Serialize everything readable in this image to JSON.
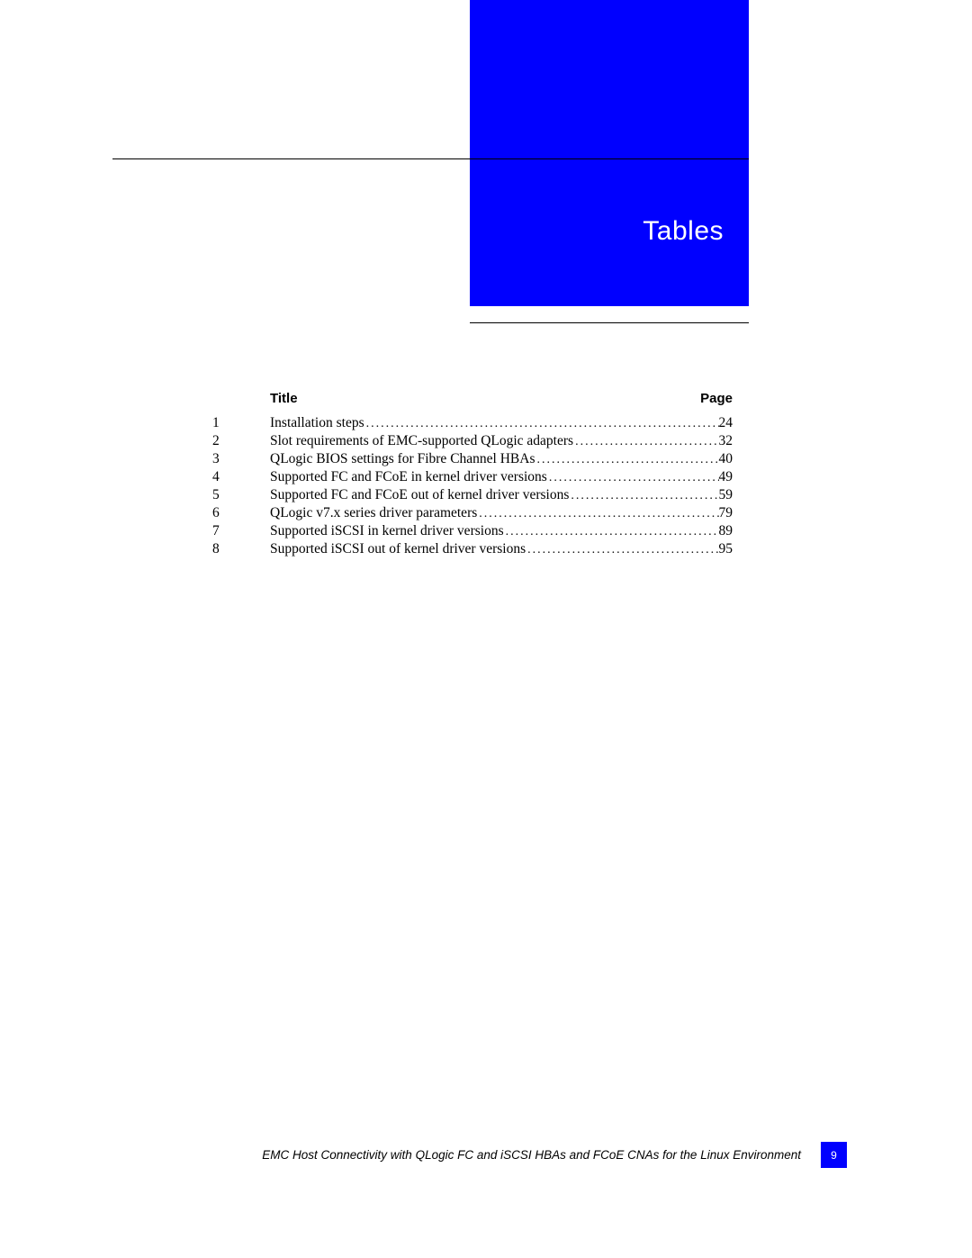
{
  "banner": {
    "title": "Tables",
    "bg_color": "#0000ff",
    "text_color": "#ffffff",
    "title_fontsize": 30
  },
  "headers": {
    "title_label": "Title",
    "page_label": "Page",
    "fontsize": 15,
    "font_weight": "bold",
    "color": "#000000"
  },
  "entries": [
    {
      "num": "1",
      "title": "Installation steps",
      "page": "24"
    },
    {
      "num": "2",
      "title": "Slot requirements of EMC-supported QLogic adapters",
      "page": "32"
    },
    {
      "num": "3",
      "title": "QLogic BIOS settings for Fibre Channel HBAs",
      "page": "40"
    },
    {
      "num": "4",
      "title": "Supported FC and FCoE in kernel driver versions",
      "page": "49"
    },
    {
      "num": "5",
      "title": "Supported FC and FCoE out of kernel driver versions",
      "page": "59"
    },
    {
      "num": "6",
      "title": "QLogic v7.x series driver parameters",
      "page": "79"
    },
    {
      "num": "7",
      "title": "Supported iSCSI in kernel driver versions",
      "page": "89"
    },
    {
      "num": "8",
      "title": "Supported iSCSI out of kernel driver versions",
      "page": "95"
    }
  ],
  "entry_style": {
    "fontsize": 15.5,
    "line_height": 19,
    "color": "#000000"
  },
  "footer": {
    "text": "EMC Host Connectivity with QLogic FC and iSCSI HBAs and FCoE CNAs for the Linux Environment",
    "page_number": "9",
    "box_color": "#0000ff",
    "text_color": "#000000",
    "pagenum_color": "#ffffff",
    "fontsize": 13.5
  },
  "page_bg": "#ffffff",
  "rules": {
    "color": "#000000"
  }
}
